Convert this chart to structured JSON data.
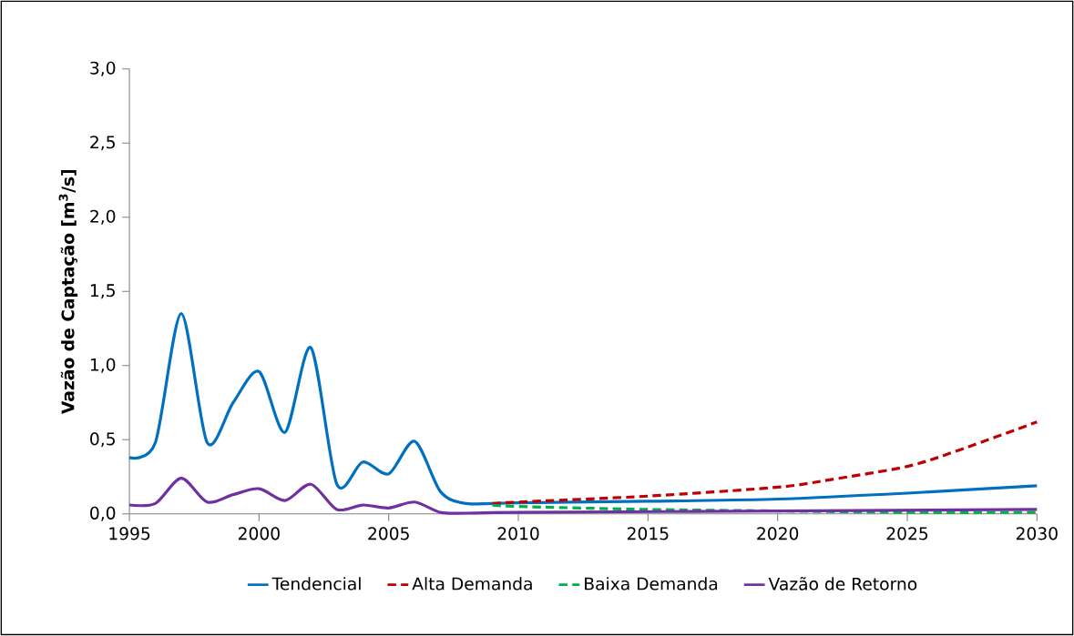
{
  "chart_data": {
    "type": "line",
    "ylabel": "Vazão de Captação [m$^{3}$/s]",
    "xlim": [
      1995,
      2030
    ],
    "xticks": [
      1995,
      2000,
      2005,
      2010,
      2015,
      2020,
      2025,
      2030
    ],
    "ylim": [
      0,
      3.0
    ],
    "yticks": [
      {
        "value": 0,
        "label": "0,0"
      },
      {
        "value": 0.5,
        "label": "0,5"
      },
      {
        "value": 1.0,
        "label": "1,0"
      },
      {
        "value": 1.5,
        "label": "1,5"
      },
      {
        "value": 2.0,
        "label": "2,0"
      },
      {
        "value": 2.5,
        "label": "2,5"
      },
      {
        "value": 3.0,
        "label": "3,0"
      }
    ],
    "grid": false,
    "legend": "bottom",
    "marker": "none",
    "series": [
      {
        "name": "Tendencial",
        "color": "#0070c0",
        "line_style": "solid",
        "x": [
          1995,
          1996,
          1997,
          1998,
          1999,
          2000,
          2001,
          2002,
          2003,
          2004,
          2005,
          2006,
          2007,
          2008,
          2010,
          2015,
          2020,
          2025,
          2030
        ],
        "values": [
          0.38,
          0.48,
          1.35,
          0.48,
          0.75,
          0.96,
          0.55,
          1.12,
          0.2,
          0.35,
          0.27,
          0.49,
          0.15,
          0.07,
          0.075,
          0.085,
          0.1,
          0.14,
          0.19
        ]
      },
      {
        "name": "Alta Demanda",
        "color": "#c00000",
        "line_style": "dashed",
        "x": [
          2009,
          2010,
          2015,
          2020,
          2022,
          2025,
          2027,
          2030
        ],
        "values": [
          0.07,
          0.08,
          0.12,
          0.18,
          0.23,
          0.32,
          0.43,
          0.62
        ]
      },
      {
        "name": "Baixa Demanda",
        "color": "#00b050",
        "line_style": "dashed",
        "x": [
          2009,
          2010,
          2015,
          2020,
          2025,
          2030
        ],
        "values": [
          0.06,
          0.05,
          0.03,
          0.02,
          0.01,
          0.01
        ]
      },
      {
        "name": "Vazão de Retorno",
        "color": "#7030a0",
        "line_style": "solid",
        "x": [
          1995,
          1996,
          1997,
          1998,
          1999,
          2000,
          2001,
          2002,
          2003,
          2004,
          2005,
          2006,
          2007,
          2008,
          2010,
          2020,
          2030
        ],
        "values": [
          0.06,
          0.07,
          0.24,
          0.08,
          0.13,
          0.17,
          0.09,
          0.2,
          0.03,
          0.06,
          0.04,
          0.08,
          0.01,
          0.005,
          0.01,
          0.02,
          0.03
        ]
      }
    ]
  }
}
